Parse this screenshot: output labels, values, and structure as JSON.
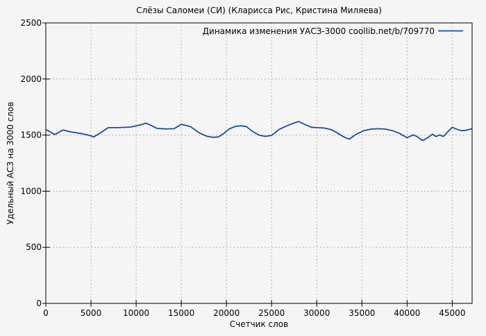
{
  "chart_data": {
    "type": "line",
    "title": "Слёзы Саломеи (СИ) (Кларисса Рис, Кристина Миляева)",
    "xlabel": "Счетчик слов",
    "ylabel": "Удельный АСЗ на 3000 слов",
    "legend": {
      "position": "top-right",
      "entries": [
        "Динамика изменения УАСЗ-3000 coollib.net/b/709770"
      ]
    },
    "grid": true,
    "xlim": [
      0,
      47200
    ],
    "ylim": [
      0,
      2500
    ],
    "xticks": [
      0,
      5000,
      10000,
      15000,
      20000,
      25000,
      30000,
      35000,
      40000,
      45000
    ],
    "yticks": [
      0,
      500,
      1000,
      1500,
      2000,
      2500
    ],
    "colors": {
      "background": "#f5f5f5",
      "border": "#000000",
      "grid": "#b0b0b0",
      "series": "#1a4b9c"
    },
    "series": [
      {
        "name": "Динамика изменения УАСЗ-3000 coollib.net/b/709770",
        "color": "#1a4b9c",
        "x": [
          0,
          1000,
          1900,
          2800,
          3900,
          5000,
          5300,
          6100,
          6900,
          8000,
          9400,
          10400,
          11100,
          11700,
          12300,
          13200,
          14200,
          15000,
          16000,
          17000,
          17800,
          18500,
          19100,
          19700,
          20300,
          21000,
          21600,
          22200,
          22900,
          23600,
          24300,
          25000,
          25800,
          26600,
          27400,
          28000,
          28700,
          29400,
          30000,
          30800,
          31600,
          32300,
          33000,
          33600,
          34300,
          35200,
          36000,
          36800,
          37600,
          38400,
          39100,
          40000,
          40700,
          41100,
          41700,
          42300,
          42800,
          43200,
          43600,
          44000,
          44500,
          45000,
          45400,
          46000,
          46500,
          47100
        ],
        "y": [
          1550,
          1505,
          1545,
          1528,
          1514,
          1493,
          1483,
          1522,
          1566,
          1566,
          1572,
          1590,
          1607,
          1585,
          1560,
          1555,
          1557,
          1596,
          1576,
          1520,
          1490,
          1480,
          1483,
          1514,
          1555,
          1578,
          1583,
          1576,
          1532,
          1500,
          1488,
          1497,
          1549,
          1580,
          1605,
          1621,
          1594,
          1570,
          1566,
          1563,
          1549,
          1518,
          1483,
          1464,
          1505,
          1539,
          1553,
          1557,
          1553,
          1539,
          1518,
          1477,
          1502,
          1487,
          1452,
          1477,
          1508,
          1487,
          1502,
          1487,
          1529,
          1570,
          1555,
          1539,
          1543,
          1555
        ]
      }
    ]
  }
}
